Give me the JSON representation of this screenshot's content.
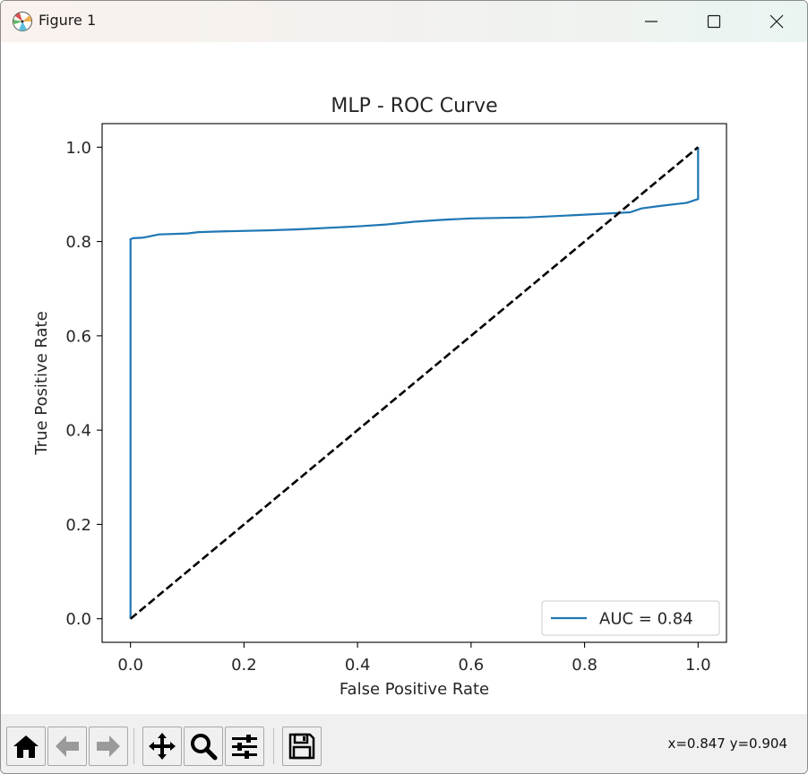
{
  "window": {
    "title": "Figure 1",
    "controls": {
      "minimize": "minimize",
      "maximize": "maximize",
      "close": "close"
    }
  },
  "toolbar": {
    "buttons": [
      {
        "name": "home",
        "icon": "home-icon"
      },
      {
        "name": "back",
        "icon": "back-arrow-icon"
      },
      {
        "name": "forward",
        "icon": "forward-arrow-icon"
      },
      {
        "name": "pan",
        "icon": "move-icon"
      },
      {
        "name": "zoom",
        "icon": "magnifier-icon"
      },
      {
        "name": "configure-subplots",
        "icon": "sliders-icon"
      },
      {
        "name": "save",
        "icon": "floppy-disk-icon"
      }
    ],
    "coords_text": "x=0.847 y=0.904"
  },
  "chart_data": {
    "type": "line",
    "title": "MLP - ROC Curve",
    "xlabel": "False Positive Rate",
    "ylabel": "True Positive Rate",
    "xlim": [
      -0.05,
      1.05
    ],
    "ylim": [
      -0.05,
      1.05
    ],
    "xticks": [
      "0.0",
      "0.2",
      "0.4",
      "0.6",
      "0.8",
      "1.0"
    ],
    "yticks": [
      "0.0",
      "0.2",
      "0.4",
      "0.6",
      "0.8",
      "1.0"
    ],
    "grid": false,
    "legend_position": "lower right",
    "series": [
      {
        "name": "AUC = 0.84",
        "color": "#1f77b4",
        "style": "solid",
        "x": [
          0.0,
          0.0,
          0.0,
          0.005,
          0.02,
          0.03,
          0.05,
          0.1,
          0.12,
          0.15,
          0.25,
          0.3,
          0.4,
          0.45,
          0.5,
          0.55,
          0.6,
          0.7,
          0.75,
          0.8,
          0.85,
          0.88,
          0.9,
          0.93,
          0.98,
          1.0,
          1.0,
          1.0
        ],
        "y": [
          0.0,
          0.5,
          0.805,
          0.807,
          0.808,
          0.81,
          0.815,
          0.817,
          0.82,
          0.821,
          0.824,
          0.826,
          0.832,
          0.836,
          0.842,
          0.846,
          0.849,
          0.851,
          0.854,
          0.857,
          0.86,
          0.862,
          0.87,
          0.875,
          0.882,
          0.89,
          0.95,
          1.0
        ]
      },
      {
        "name": "",
        "color": "#000000",
        "style": "dashed",
        "x": [
          0.0,
          1.0
        ],
        "y": [
          0.0,
          1.0
        ]
      }
    ]
  }
}
